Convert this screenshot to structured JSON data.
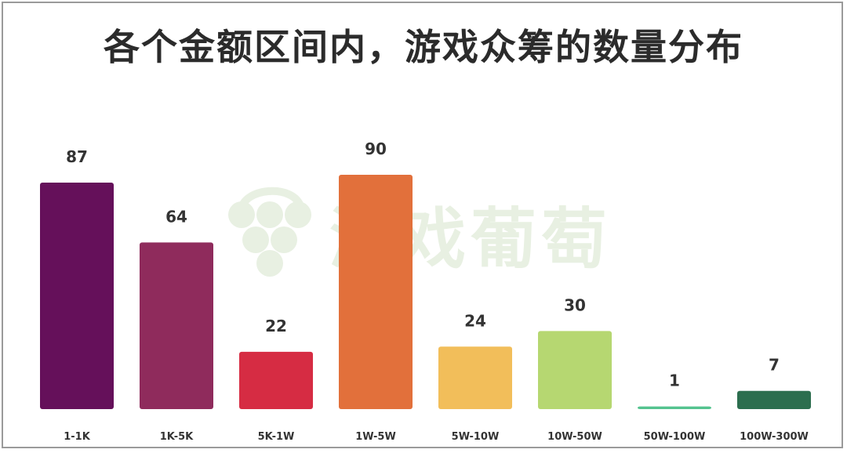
{
  "title": "各个金额区间内，游戏众筹的数量分布",
  "watermark": {
    "text": "游戏葡萄",
    "color": "#e8f0e2"
  },
  "chart_data": {
    "type": "bar",
    "title": "各个金额区间内，游戏众筹的数量分布",
    "xlabel": "",
    "ylabel": "",
    "categories": [
      "1-1K",
      "1K-5K",
      "5K-1W",
      "1W-5W",
      "5W-10W",
      "10W-50W",
      "50W-100W",
      "100W-300W"
    ],
    "values": [
      87,
      64,
      22,
      90,
      24,
      30,
      1,
      7
    ],
    "colors": [
      "#65105a",
      "#8f2b5c",
      "#d62c43",
      "#e2703b",
      "#f2be5a",
      "#b6d771",
      "#54c38f",
      "#2c6e4e"
    ],
    "ylim": [
      0,
      90
    ],
    "grid": false,
    "data_labels": true
  }
}
